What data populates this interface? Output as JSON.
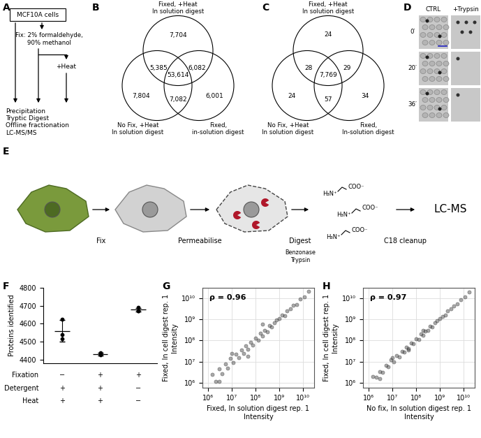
{
  "panel_labels": [
    "A",
    "B",
    "C",
    "D",
    "E",
    "F",
    "G",
    "H"
  ],
  "A": {
    "start": "MCF10A cells",
    "fix": "Fix: 2% formaldehyde,\n90% methanol",
    "heat": "+Heat",
    "steps": [
      "Precipitation",
      "Tryptic Digest",
      "Offline fractionation",
      "LC-MS/MS"
    ]
  },
  "B": {
    "sets": {
      "top": "Fixed, +Heat\nIn solution digest",
      "left": "No Fix, +Heat\nIn solution digest",
      "right": "Fixed,\nin-solution digest"
    },
    "regions": {
      "top": "7,704",
      "left": "7,804",
      "right": "6,001",
      "top_left": "5,385",
      "top_right": "6,082",
      "left_right": "7,082",
      "all": "53,614"
    }
  },
  "C": {
    "sets": {
      "top": "Fixed, +Heat\nIn solution digest",
      "left": "No Fix, +Heat\nIn solution digest",
      "right": "Fixed,\nIn-solution digest"
    },
    "regions": {
      "top": "24",
      "left": "24",
      "right": "34",
      "top_left": "28",
      "top_right": "29",
      "left_right": "57",
      "all": "7,769"
    }
  },
  "D": {
    "columns": [
      "CTRL",
      "+Trypsin"
    ],
    "rows": [
      "0′",
      "20′",
      "36′"
    ]
  },
  "E": {
    "steps": [
      "Fix",
      "Permeabilise",
      "Digest"
    ],
    "reagents": "Benzonase\nTrypsin",
    "ions": [
      "H₃N⁺",
      "COO⁻"
    ],
    "cleanup": "C18 cleanup",
    "readout": "LC-MS"
  },
  "chart_data": [
    {
      "type": "scatter",
      "ylabel": "Proteins identified",
      "categories": [
        null,
        null,
        null
      ],
      "points": [
        [
          4625,
          4540,
          4515
        ],
        [
          4440,
          4430,
          4425
        ],
        [
          4690,
          4672,
          4672
        ]
      ],
      "means": [
        4560,
        4432,
        4678
      ],
      "sd": [
        60,
        8,
        10
      ],
      "color": "#000000",
      "ylim": [
        4380,
        4800
      ],
      "yticks": [
        4400,
        4500,
        4600,
        4700,
        4800
      ],
      "tick_labels": "y",
      "conditions": [
        {
          "name": "Fixation",
          "values": [
            "−",
            "+",
            "+"
          ]
        },
        {
          "name": "Detergent",
          "values": [
            "+",
            "+",
            "−"
          ]
        },
        {
          "name": "Heat",
          "values": [
            "+",
            "+",
            "−"
          ]
        }
      ]
    },
    {
      "type": "scatter",
      "log": true,
      "grid": true,
      "color": "#404040",
      "marker": "o",
      "xlabel": "Fixed, In solution digest rep. 1\nIntensity",
      "ylabel": "Fixed, In cell digest rep. 1\nIntensity",
      "annotation": "ρ = 0.96",
      "x": [
        1500000.0,
        2200000.0,
        3000000.0,
        4000000.0,
        5500000.0,
        7000000.0,
        9000000.0,
        12000000.0,
        15000000.0,
        20000000.0,
        26000000.0,
        33000000.0,
        40000000.0,
        50000000.0,
        65000000.0,
        80000000.0,
        100000000.0,
        130000000.0,
        160000000.0,
        200000000.0,
        250000000.0,
        320000000.0,
        400000000.0,
        500000000.0,
        650000000.0,
        800000000.0,
        1000000000.0,
        1300000000.0,
        1700000000.0,
        2200000000.0,
        3000000000.0,
        4000000000.0,
        5500000000.0,
        8000000000.0,
        12000000000.0,
        18000000000.0,
        3000000.0,
        10000000.0,
        50000000.0,
        200000000.0
      ],
      "y": [
        2500000.0,
        1200000.0,
        4500000.0,
        2800000.0,
        8000000.0,
        5000000.0,
        14000000.0,
        9000000.0,
        22000000.0,
        15000000.0,
        35000000.0,
        24000000.0,
        55000000.0,
        38000000.0,
        80000000.0,
        60000000.0,
        130000000.0,
        100000000.0,
        220000000.0,
        160000000.0,
        300000000.0,
        260000000.0,
        500000000.0,
        420000000.0,
        700000000.0,
        900000000.0,
        1100000000.0,
        1600000000.0,
        1500000000.0,
        2500000000.0,
        3200000000.0,
        4500000000.0,
        5000000000.0,
        9000000000.0,
        11000000000.0,
        20000000000.0,
        1200000.0,
        25000000.0,
        18000000.0,
        600000000.0
      ],
      "xlim": [
        600000,
        30000000000
      ],
      "ylim": [
        600000,
        30000000000
      ],
      "xticks": [
        {
          "value": 1000000,
          "label": "10⁶"
        },
        {
          "value": 10000000,
          "label": "10⁷"
        },
        {
          "value": 100000000,
          "label": "10⁸"
        },
        {
          "value": 1000000000,
          "label": "10⁹"
        },
        {
          "value": 10000000000,
          "label": "10¹⁰"
        }
      ],
      "yticks": [
        {
          "value": 1000000,
          "label": "10⁶"
        },
        {
          "value": 10000000,
          "label": "10⁷"
        },
        {
          "value": 100000000,
          "label": "10⁸"
        },
        {
          "value": 1000000000,
          "label": "10⁹"
        },
        {
          "value": 10000000000,
          "label": "10¹⁰"
        }
      ]
    },
    {
      "type": "scatter",
      "log": true,
      "grid": true,
      "color": "#404040",
      "marker": "o",
      "xlabel": "No fix, In solution digest rep. 1\nIntensity",
      "ylabel": "Fixed, In cell digest rep. 1\nIntensity",
      "annotation": "ρ = 0.97",
      "x": [
        1500000.0,
        2200000.0,
        3000000.0,
        4000000.0,
        5500000.0,
        7000000.0,
        9000000.0,
        12000000.0,
        15000000.0,
        20000000.0,
        26000000.0,
        33000000.0,
        40000000.0,
        50000000.0,
        65000000.0,
        80000000.0,
        100000000.0,
        130000000.0,
        160000000.0,
        200000000.0,
        250000000.0,
        320000000.0,
        400000000.0,
        500000000.0,
        650000000.0,
        800000000.0,
        1000000000.0,
        1300000000.0,
        1700000000.0,
        2200000000.0,
        3000000000.0,
        4000000000.0,
        5500000000.0,
        8000000000.0,
        12000000000.0,
        18000000000.0,
        3000000.0,
        10000000.0,
        50000000.0,
        200000000.0
      ],
      "y": [
        2000000.0,
        1800000.0,
        3500000.0,
        3200000.0,
        7000000.0,
        6000000.0,
        12000000.0,
        10000000.0,
        19000000.0,
        17000000.0,
        30000000.0,
        28000000.0,
        50000000.0,
        42000000.0,
        75000000.0,
        70000000.0,
        120000000.0,
        110000000.0,
        200000000.0,
        180000000.0,
        280000000.0,
        300000000.0,
        480000000.0,
        450000000.0,
        700000000.0,
        850000000.0,
        1100000000.0,
        1400000000.0,
        1600000000.0,
        2400000000.0,
        3100000000.0,
        4200000000.0,
        5200000000.0,
        8500000000.0,
        11500000000.0,
        19000000000.0,
        1600000.0,
        16000000.0,
        35000000.0,
        300000000.0
      ],
      "xlim": [
        600000,
        30000000000
      ],
      "ylim": [
        600000,
        30000000000
      ],
      "xticks": [
        {
          "value": 1000000,
          "label": "10⁶"
        },
        {
          "value": 10000000,
          "label": "10⁷"
        },
        {
          "value": 100000000,
          "label": "10⁸"
        },
        {
          "value": 1000000000,
          "label": "10⁹"
        },
        {
          "value": 10000000000,
          "label": "10¹⁰"
        }
      ],
      "yticks": [
        {
          "value": 1000000,
          "label": "10⁶"
        },
        {
          "value": 10000000,
          "label": "10⁷"
        },
        {
          "value": 100000000,
          "label": "10⁸"
        },
        {
          "value": 1000000000,
          "label": "10⁹"
        },
        {
          "value": 10000000000,
          "label": "10¹⁰"
        }
      ]
    }
  ]
}
